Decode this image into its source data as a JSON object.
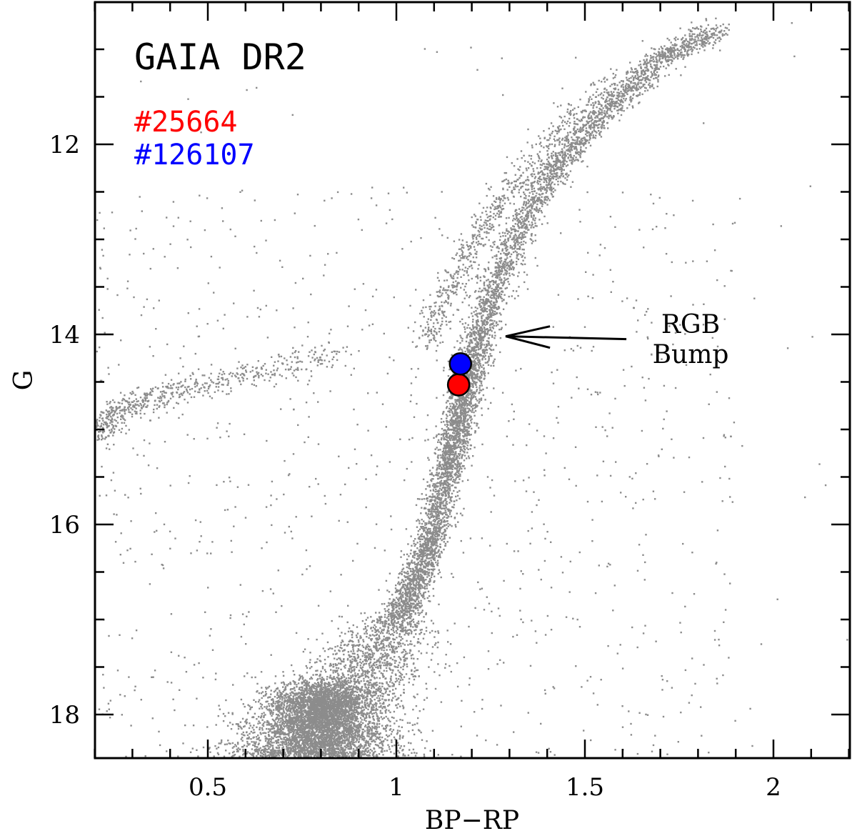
{
  "chart_data": {
    "type": "scatter",
    "title": "GAIA DR2",
    "xlabel": "BP−RP",
    "ylabel": "G",
    "xlim": [
      0.2,
      2.2
    ],
    "ylim": [
      18.5,
      10.5
    ],
    "y_inverted": true,
    "grid": false,
    "x_major_ticks": [
      0.5,
      1,
      1.5,
      2
    ],
    "x_tick_labels": [
      "0.5",
      "1",
      "1.5",
      "2"
    ],
    "x_minor_step": 0.1,
    "y_major_ticks": [
      12,
      14,
      16,
      18
    ],
    "y_tick_labels": [
      "12",
      "14",
      "16",
      "18"
    ],
    "y_minor_step": 0.5,
    "legend_placement": "top-left",
    "field_color": "#8c8c8c",
    "highlighted_stars": [
      {
        "name": "#25664",
        "x": 1.165,
        "y": 14.53,
        "color": "#ff0000"
      },
      {
        "name": "#126107",
        "x": 1.17,
        "y": 14.31,
        "color": "#0000ff"
      }
    ],
    "annotation": {
      "lines": [
        "RGB",
        "Bump"
      ],
      "arrow_to": {
        "x": 1.29,
        "y": 14.02
      },
      "arrow_from": {
        "x": 1.61,
        "y": 14.05
      }
    },
    "field_stars_note": "dense cloud of cluster member stars; generated procedurally along the cluster sequences",
    "sequences": {
      "rgb_ridge": [
        [
          0.76,
          18.5
        ],
        [
          0.82,
          18.0
        ],
        [
          0.93,
          17.4
        ],
        [
          1.03,
          16.8
        ],
        [
          1.09,
          16.2
        ],
        [
          1.13,
          15.5
        ],
        [
          1.16,
          15.0
        ],
        [
          1.19,
          14.5
        ],
        [
          1.22,
          14.0
        ],
        [
          1.27,
          13.4
        ],
        [
          1.35,
          12.7
        ],
        [
          1.45,
          12.1
        ],
        [
          1.57,
          11.6
        ],
        [
          1.7,
          11.1
        ],
        [
          1.85,
          10.8
        ]
      ],
      "agb_ridge": [
        [
          1.08,
          14.1
        ],
        [
          1.12,
          13.7
        ],
        [
          1.17,
          13.3
        ],
        [
          1.24,
          12.8
        ],
        [
          1.33,
          12.3
        ],
        [
          1.45,
          11.8
        ],
        [
          1.58,
          11.3
        ]
      ],
      "horizontal_branch": [
        [
          0.2,
          15.05
        ],
        [
          0.25,
          14.85
        ],
        [
          0.3,
          14.75
        ],
        [
          0.38,
          14.65
        ],
        [
          0.46,
          14.55
        ],
        [
          0.55,
          14.48
        ],
        [
          0.65,
          14.4
        ],
        [
          0.75,
          14.3
        ],
        [
          0.85,
          14.18
        ]
      ]
    }
  }
}
